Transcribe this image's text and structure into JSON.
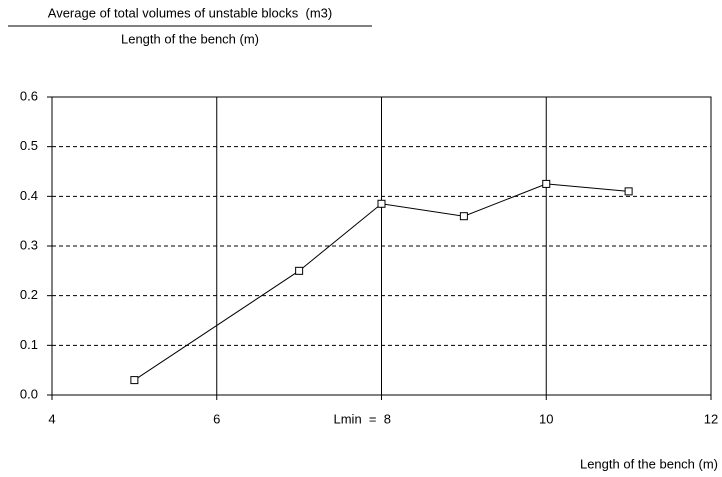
{
  "chart_data": {
    "type": "line",
    "y_label": {
      "numerator": "Average of total volumes of unstable blocks  (m3)",
      "denominator": "Length of the bench (m)"
    },
    "x_label": "Length of the bench (m)",
    "x": [
      5,
      7,
      8,
      9,
      10,
      11
    ],
    "series": [
      {
        "color": "#000000",
        "values": [
          0.03,
          0.25,
          0.385,
          0.36,
          0.425,
          0.41
        ]
      }
    ],
    "xlim": [
      4,
      12
    ],
    "xticks": [
      4,
      6,
      {
        "value": 8,
        "label": "Lmin  =  8"
      },
      10,
      12
    ],
    "ylim": [
      0,
      0.6
    ],
    "yticks": [
      {
        "value": 0,
        "label": "0.0"
      },
      0.1,
      0.2,
      0.3,
      0.4,
      0.5,
      0.6
    ],
    "grid": true
  }
}
